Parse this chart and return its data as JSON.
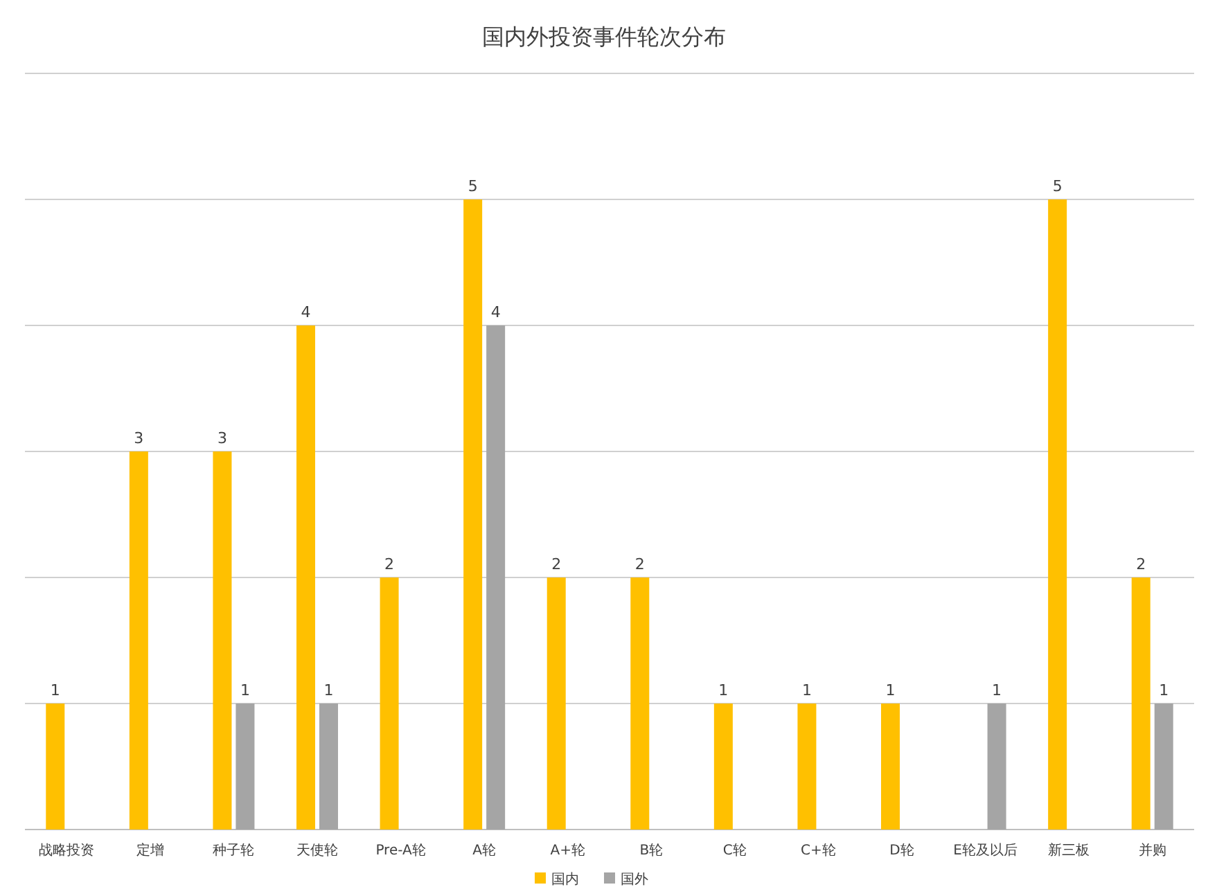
{
  "chart_data": {
    "type": "bar",
    "title": "国内外投资事件轮次分布",
    "categories": [
      "战略投资",
      "定增",
      "种子轮",
      "天使轮",
      "Pre-A轮",
      "A轮",
      "A+轮",
      "B轮",
      "C轮",
      "C+轮",
      "D轮",
      "E轮及以后",
      "新三板",
      "并购"
    ],
    "series": [
      {
        "name": "国内",
        "color": "#ffc000",
        "values": [
          1,
          3,
          3,
          4,
          2,
          5,
          2,
          2,
          1,
          1,
          1,
          null,
          5,
          2
        ]
      },
      {
        "name": "国外",
        "color": "#a5a5a5",
        "values": [
          null,
          null,
          1,
          1,
          null,
          4,
          null,
          null,
          null,
          null,
          null,
          1,
          null,
          1
        ]
      }
    ],
    "ylim": [
      0,
      6
    ],
    "yticks": [
      {
        "value": 0,
        "label": null
      },
      {
        "value": 1,
        "label": null
      },
      {
        "value": 2,
        "label": null
      },
      {
        "value": 3,
        "label": null
      },
      {
        "value": 4,
        "label": null
      },
      {
        "value": 5,
        "label": null
      },
      {
        "value": 6,
        "label": null
      }
    ],
    "grid": "y",
    "legend": "bottom",
    "tick_labels": "x",
    "data_labels": true
  }
}
